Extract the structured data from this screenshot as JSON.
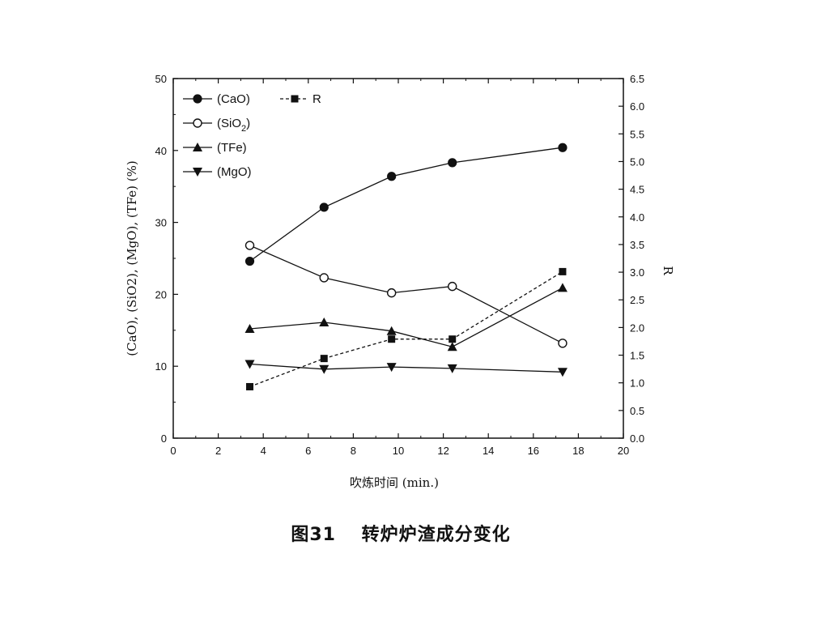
{
  "caption": "图31　 转炉炉渣成分变化",
  "chart_data": {
    "type": "line",
    "xlabel": "吹炼时间 (min.)",
    "ylabel_left": "(CaO), (SiO2), (MgO), (TFe) (%)",
    "ylabel_right": "R",
    "xlim": [
      0,
      20
    ],
    "ylim_left": [
      0,
      50
    ],
    "ylim_right": [
      0,
      6.5
    ],
    "x_ticks": [
      "0",
      "2",
      "4",
      "6",
      "8",
      "10",
      "12",
      "14",
      "16",
      "18",
      "20"
    ],
    "y_ticks_left": [
      "0",
      "10",
      "20",
      "30",
      "40",
      "50"
    ],
    "y_ticks_right": [
      "0.0",
      "0.5",
      "1.0",
      "1.5",
      "2.0",
      "2.5",
      "3.0",
      "3.5",
      "4.0",
      "4.5",
      "5.0",
      "5.5",
      "6.0",
      "6.5"
    ],
    "legend": {
      "placement": "top-left"
    },
    "series": [
      {
        "name": "(CaO)",
        "axis": "left",
        "marker": "circle-filled",
        "line": "solid",
        "color": "#111111",
        "x": [
          3.4,
          6.7,
          9.7,
          12.4,
          17.3
        ],
        "y": [
          24.6,
          32.1,
          36.4,
          38.3,
          40.4
        ]
      },
      {
        "name": "(SiO2)",
        "axis": "left",
        "marker": "circle-open",
        "line": "solid",
        "color": "#111111",
        "x": [
          3.4,
          6.7,
          9.7,
          12.4,
          17.3
        ],
        "y": [
          26.8,
          22.3,
          20.2,
          21.1,
          13.2
        ]
      },
      {
        "name": "(TFe)",
        "axis": "left",
        "marker": "triangle-up",
        "line": "solid",
        "color": "#111111",
        "x": [
          3.4,
          6.7,
          9.7,
          12.4,
          17.3
        ],
        "y": [
          15.2,
          16.1,
          14.9,
          12.7,
          20.9
        ]
      },
      {
        "name": "(MgO)",
        "axis": "left",
        "marker": "triangle-down",
        "line": "solid",
        "color": "#111111",
        "x": [
          3.4,
          6.7,
          9.7,
          12.4,
          17.3
        ],
        "y": [
          10.3,
          9.6,
          9.9,
          9.7,
          9.2
        ]
      },
      {
        "name": "R",
        "axis": "right",
        "marker": "square-filled",
        "line": "dashed",
        "color": "#111111",
        "x": [
          3.4,
          6.7,
          9.7,
          12.4,
          17.3
        ],
        "y": [
          0.93,
          1.44,
          1.79,
          1.79,
          3.01
        ]
      }
    ]
  }
}
